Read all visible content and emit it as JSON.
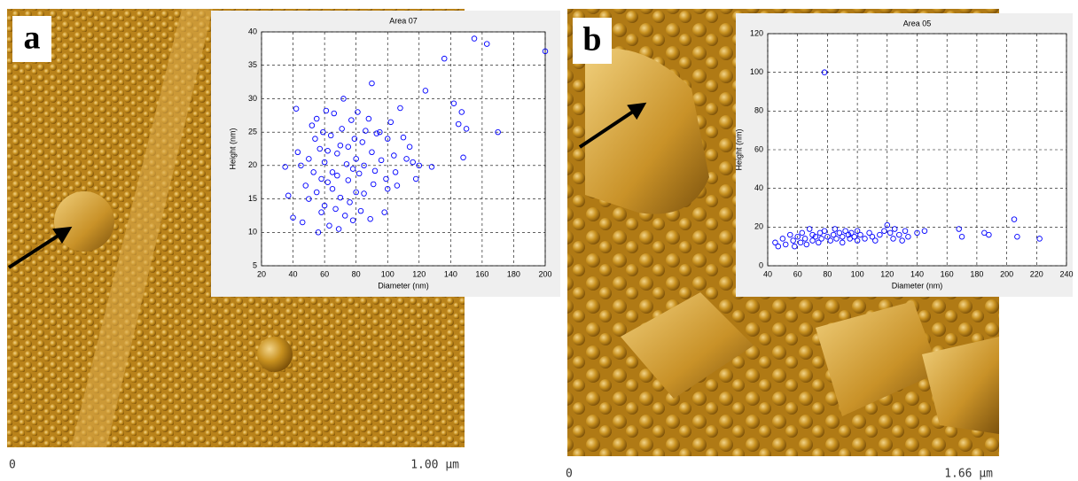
{
  "panels": [
    {
      "label": "a",
      "scale_start": "0",
      "scale_end": "1.00 µm"
    },
    {
      "label": "b",
      "scale_start": "0",
      "scale_end": "1.66 µm"
    }
  ],
  "chart_data": [
    {
      "type": "scatter",
      "title": "Area 07",
      "x_label": "Diameter (nm)",
      "y_label": "Height (nm)",
      "color": "#0000ff",
      "grid": true,
      "xlim": [
        20,
        200
      ],
      "xticks": [
        20,
        40,
        60,
        80,
        100,
        120,
        140,
        160,
        180,
        200
      ],
      "ylim": [
        5,
        40
      ],
      "yticks": [
        5,
        10,
        15,
        20,
        25,
        30,
        35,
        40
      ],
      "x": [
        35,
        37,
        40,
        42,
        43,
        45,
        46,
        48,
        50,
        50,
        52,
        53,
        54,
        55,
        55,
        56,
        57,
        58,
        58,
        59,
        60,
        60,
        61,
        62,
        62,
        63,
        64,
        65,
        65,
        66,
        67,
        68,
        68,
        69,
        70,
        70,
        71,
        72,
        73,
        74,
        75,
        75,
        76,
        77,
        78,
        78,
        79,
        80,
        80,
        81,
        82,
        83,
        84,
        85,
        85,
        86,
        88,
        89,
        90,
        90,
        91,
        92,
        93,
        95,
        96,
        98,
        99,
        100,
        100,
        102,
        104,
        105,
        106,
        108,
        110,
        112,
        114,
        116,
        118,
        120,
        124,
        128,
        136,
        142,
        145,
        147,
        148,
        150,
        155,
        163,
        170,
        200
      ],
      "values": [
        19.8,
        15.5,
        12.2,
        28.5,
        22,
        20,
        11.5,
        17,
        21,
        15,
        26,
        19,
        24,
        27,
        16,
        10,
        22.5,
        18,
        13,
        25,
        20.5,
        14,
        28.2,
        17.5,
        22.2,
        11,
        24.5,
        19,
        16.5,
        27.8,
        13.5,
        21.8,
        18.5,
        10.5,
        23,
        15.2,
        25.5,
        30,
        12.5,
        20.2,
        17.8,
        22.8,
        14.5,
        26.8,
        19.5,
        11.8,
        24,
        21,
        16,
        28,
        18.8,
        13.2,
        23.5,
        20,
        15.8,
        25.2,
        27,
        12,
        32.3,
        22,
        17.2,
        19.2,
        24.8,
        25,
        20.8,
        13,
        18,
        24,
        16.5,
        26.5,
        21.5,
        19,
        17,
        28.6,
        24.2,
        21,
        22.8,
        20.5,
        18,
        20,
        31.2,
        19.8,
        36,
        29.3,
        26.2,
        28,
        21.2,
        25.5,
        39,
        38.2,
        25,
        37.1
      ]
    },
    {
      "type": "scatter",
      "title": "Area 05",
      "x_label": "Diameter (nm)",
      "y_label": "Height (nm)",
      "color": "#0000ff",
      "grid": true,
      "xlim": [
        40,
        240
      ],
      "xticks": [
        40,
        60,
        80,
        100,
        120,
        140,
        160,
        180,
        200,
        220,
        240
      ],
      "ylim": [
        0,
        120
      ],
      "yticks": [
        0,
        20,
        40,
        60,
        80,
        100,
        120
      ],
      "x": [
        45,
        47,
        50,
        52,
        55,
        57,
        58,
        60,
        62,
        63,
        65,
        66,
        68,
        70,
        70,
        72,
        74,
        75,
        76,
        78,
        78,
        80,
        82,
        84,
        85,
        86,
        88,
        90,
        90,
        92,
        94,
        95,
        96,
        98,
        100,
        100,
        102,
        105,
        108,
        110,
        112,
        115,
        118,
        120,
        122,
        124,
        125,
        128,
        130,
        132,
        134,
        140,
        145,
        168,
        170,
        185,
        188,
        205,
        207,
        222
      ],
      "values": [
        12,
        10,
        14,
        11,
        16,
        13,
        10,
        15,
        12,
        17,
        14,
        11,
        19,
        16,
        13,
        15,
        12,
        17,
        14,
        100,
        18,
        15,
        13,
        16,
        19,
        14,
        17,
        15,
        12,
        18,
        16,
        14,
        17,
        15,
        13,
        18,
        16,
        14,
        17,
        15,
        13,
        16,
        18,
        21,
        17,
        14,
        19,
        16,
        13,
        18,
        15,
        17,
        18,
        19,
        15,
        17,
        16,
        24,
        15,
        14
      ]
    }
  ]
}
